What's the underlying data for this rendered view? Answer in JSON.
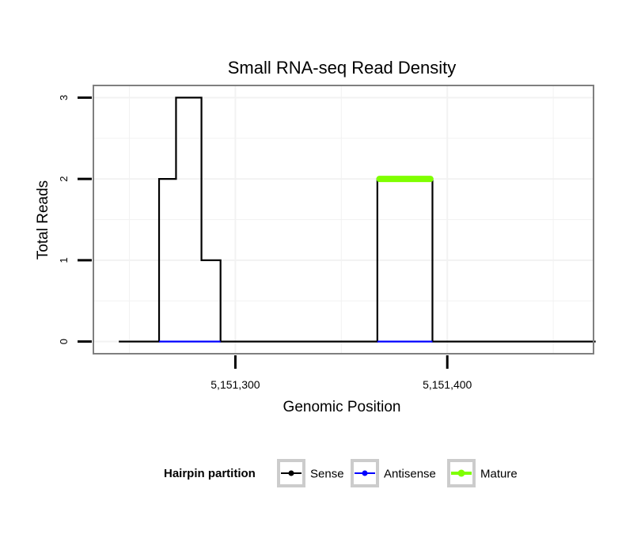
{
  "chart_data": {
    "type": "line",
    "title": "Small RNA-seq Read Density",
    "xlabel": "Genomic Position",
    "ylabel": "Total Reads",
    "xlim": [
      5151233,
      5151469
    ],
    "ylim": [
      -0.15,
      3.15
    ],
    "x_ticks": [
      {
        "value": 5151300,
        "label": "5,151,300"
      },
      {
        "value": 5151400,
        "label": "5,151,400"
      }
    ],
    "y_ticks": [
      {
        "value": 0,
        "label": "0"
      },
      {
        "value": 1,
        "label": "1"
      },
      {
        "value": 2,
        "label": "2"
      },
      {
        "value": 3,
        "label": "3"
      }
    ],
    "grid": true,
    "series": [
      {
        "name": "Sense",
        "color": "#000000",
        "x": [
          5151245,
          5151264,
          5151264,
          5151272,
          5151272,
          5151284,
          5151284,
          5151293,
          5151293,
          5151367,
          5151367,
          5151393,
          5151393,
          5151470
        ],
        "y": [
          0,
          0,
          2,
          2,
          3,
          3,
          1,
          1,
          0,
          0,
          2,
          2,
          0,
          0
        ]
      },
      {
        "name": "Antisense",
        "color": "#0000ff",
        "x": [
          5151264,
          5151293,
          5151293,
          5151367,
          5151367,
          5151393
        ],
        "y": [
          0,
          0,
          null,
          null,
          0,
          0
        ]
      },
      {
        "name": "Mature",
        "color": "#7fff00",
        "x": [
          5151368,
          5151392
        ],
        "y": [
          2,
          2
        ]
      }
    ],
    "legend": {
      "title": "Hairpin partition",
      "position": "bottom",
      "entries": [
        "Sense",
        "Antisense",
        "Mature"
      ]
    }
  }
}
